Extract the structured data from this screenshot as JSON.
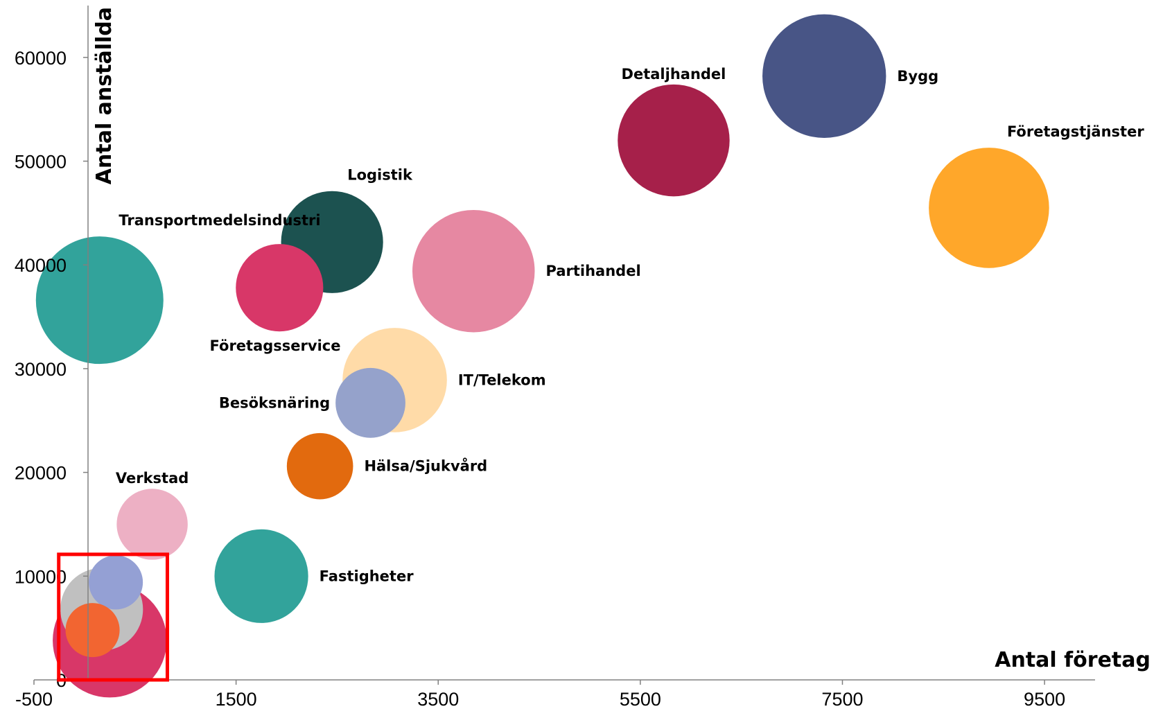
{
  "chart_data": {
    "type": "bubble",
    "title": "",
    "xlabel": "Antal företag",
    "ylabel": "Antal anställda",
    "xlim": [
      -500,
      10000
    ],
    "ylim": [
      0,
      65000
    ],
    "x_ticks": [
      -500,
      1500,
      3500,
      5500,
      7500,
      9500
    ],
    "y_ticks": [
      0,
      10000,
      20000,
      30000,
      40000,
      50000,
      60000
    ],
    "grid": false,
    "legend": "none",
    "bubbles": [
      {
        "name": "Transportmedelsindustri",
        "x": 150,
        "y": 36600,
        "size": 1.0,
        "color": "#32A39B",
        "label_pos": "top-right"
      },
      {
        "name": "Logistik",
        "x": 2450,
        "y": 42200,
        "size": 0.64,
        "color": "#1C5250",
        "label_pos": "top-right"
      },
      {
        "name": "Företagsservice",
        "x": 1930,
        "y": 37800,
        "size": 0.47,
        "color": "#D83768",
        "label_pos": "bottom"
      },
      {
        "name": "Partihandel",
        "x": 3850,
        "y": 39400,
        "size": 0.92,
        "color": "#E688A2",
        "label_pos": "right"
      },
      {
        "name": "IT/Telekom",
        "x": 3070,
        "y": 28900,
        "size": 0.67,
        "color": "#FFDBA8",
        "label_pos": "right"
      },
      {
        "name": "Besöksnäring",
        "x": 2830,
        "y": 26700,
        "size": 0.3,
        "color": "#95A2CB",
        "label_pos": "left"
      },
      {
        "name": "Hälsa/Sjukvård",
        "x": 2330,
        "y": 20600,
        "size": 0.27,
        "color": "#E26A0E",
        "label_pos": "right"
      },
      {
        "name": "Detaljhandel",
        "x": 5830,
        "y": 52000,
        "size": 0.77,
        "color": "#A6204A",
        "label_pos": "top"
      },
      {
        "name": "Bygg",
        "x": 7320,
        "y": 58200,
        "size": 0.94,
        "color": "#485586",
        "label_pos": "right"
      },
      {
        "name": "Företagstjänster",
        "x": 8950,
        "y": 45500,
        "size": 0.89,
        "color": "#FFA72A",
        "label_pos": "top-right"
      },
      {
        "name": "Verkstad",
        "x": 670,
        "y": 15000,
        "size": 0.31,
        "color": "#EDB0C4",
        "label_pos": "top"
      },
      {
        "name": "Fastigheter",
        "x": 1750,
        "y": 10000,
        "size": 0.54,
        "color": "#32A39B",
        "label_pos": "right"
      },
      {
        "name": "",
        "x": 250,
        "y": 3800,
        "size": 0.8,
        "color": "#D83768",
        "label_pos": "none"
      },
      {
        "name": "",
        "x": 170,
        "y": 6800,
        "size": 0.42,
        "color": "#C0C0C0",
        "label_pos": "none"
      },
      {
        "name": "",
        "x": 310,
        "y": 9400,
        "size": 0.18,
        "color": "#94A0D4",
        "label_pos": "none"
      },
      {
        "name": "",
        "x": 80,
        "y": 4800,
        "size": 0.18,
        "color": "#F26531",
        "label_pos": "none"
      }
    ],
    "highlight_box": {
      "x_range": [
        -255,
        820
      ],
      "y_range": [
        0,
        12100
      ],
      "color": "#FF0000"
    }
  }
}
